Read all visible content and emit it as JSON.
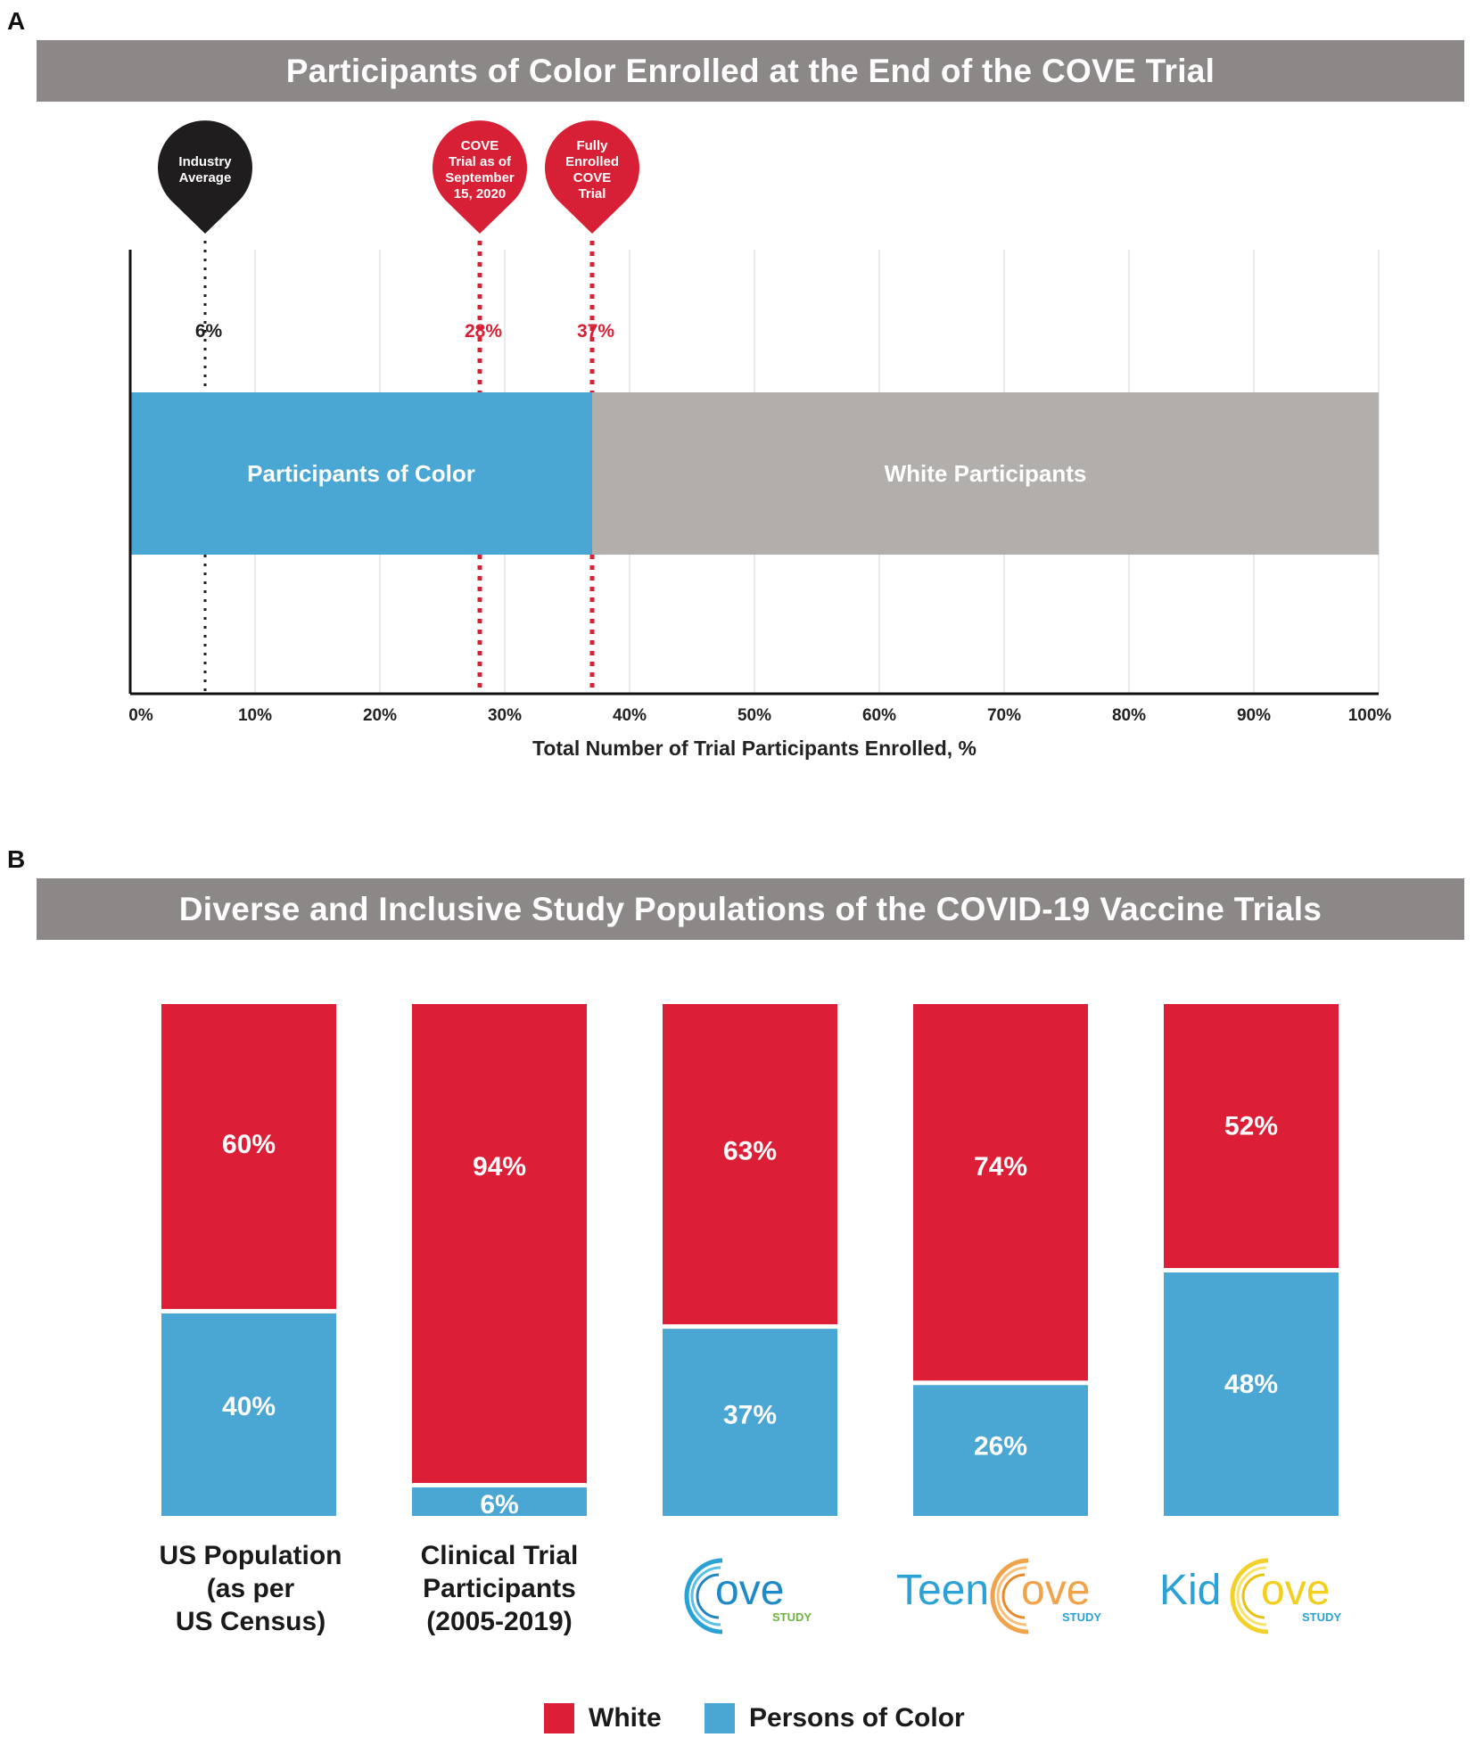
{
  "panel_a": {
    "letter": "A",
    "banner_title": "Participants of Color Enrolled at the End of the COVE Trial",
    "xlabel": "Total Number of Trial Participants Enrolled, %",
    "markers": [
      {
        "label_lines": [
          "Industry",
          "Average"
        ],
        "value": 6,
        "value_label": "6%",
        "color": "#1f1d1e"
      },
      {
        "label_lines": [
          "COVE",
          "Trial as of",
          "September",
          "15, 2020"
        ],
        "value": 28,
        "value_label": "28%",
        "color": "#d71f35"
      },
      {
        "label_lines": [
          "Fully",
          "Enrolled",
          "COVE",
          "Trial"
        ],
        "value": 37,
        "value_label": "37%",
        "color": "#d71f35"
      }
    ],
    "bar_segments": [
      {
        "label": "Participants of Color",
        "value": 37,
        "color": "#4aa6d3"
      },
      {
        "label": "White Participants",
        "value": 63,
        "color": "#b2aeac"
      }
    ]
  },
  "panel_b": {
    "letter": "B",
    "banner_title": "Diverse and Inclusive Study Populations of the COVID-19 Vaccine Trials",
    "legend": [
      {
        "label": "White",
        "color": "#dc1f36"
      },
      {
        "label": "Persons of Color",
        "color": "#4aa6d3"
      }
    ],
    "categories": [
      {
        "label_lines": [
          "US Population",
          "(as per",
          "US Census)"
        ]
      },
      {
        "label_lines": [
          "Clinical Trial",
          "Participants",
          "(2005-2019)"
        ]
      },
      {
        "logo": "ove",
        "logo_prefix": "",
        "logo_sub": "STUDY"
      },
      {
        "logo": "ove",
        "logo_prefix": "Teen",
        "logo_sub": "STUDY"
      },
      {
        "logo": "ove",
        "logo_prefix": "Kid",
        "logo_sub": "STUDY"
      }
    ]
  },
  "chart_data": [
    {
      "type": "bar",
      "orientation": "horizontal-stacked",
      "title": "Participants of Color Enrolled at the End of the COVE Trial",
      "xlabel": "Total Number of Trial Participants Enrolled, %",
      "xlim": [
        0,
        100
      ],
      "xticks": [
        "0%",
        "10%",
        "20%",
        "30%",
        "40%",
        "50%",
        "60%",
        "70%",
        "80%",
        "90%",
        "100%"
      ],
      "series": [
        {
          "name": "Participants of Color",
          "values": [
            37
          ]
        },
        {
          "name": "White Participants",
          "values": [
            63
          ]
        }
      ],
      "reference_lines": [
        {
          "name": "Industry Average",
          "value": 6
        },
        {
          "name": "COVE Trial as of September 15, 2020",
          "value": 28
        },
        {
          "name": "Fully Enrolled COVE Trial",
          "value": 37
        }
      ]
    },
    {
      "type": "bar",
      "orientation": "vertical-stacked-100",
      "title": "Diverse and Inclusive Study Populations of the COVID-19 Vaccine Trials",
      "categories": [
        "US Population (as per US Census)",
        "Clinical Trial Participants (2005-2019)",
        "Cove Study",
        "TeenCove Study",
        "KidCove Study"
      ],
      "series": [
        {
          "name": "White",
          "values": [
            60,
            94,
            63,
            74,
            52
          ],
          "labels": [
            "60%",
            "94%",
            "63%",
            "74%",
            "52%"
          ]
        },
        {
          "name": "Persons of Color",
          "values": [
            40,
            6,
            37,
            26,
            48
          ],
          "labels": [
            "40%",
            "6%",
            "37%",
            "26%",
            "48%"
          ]
        }
      ]
    }
  ]
}
